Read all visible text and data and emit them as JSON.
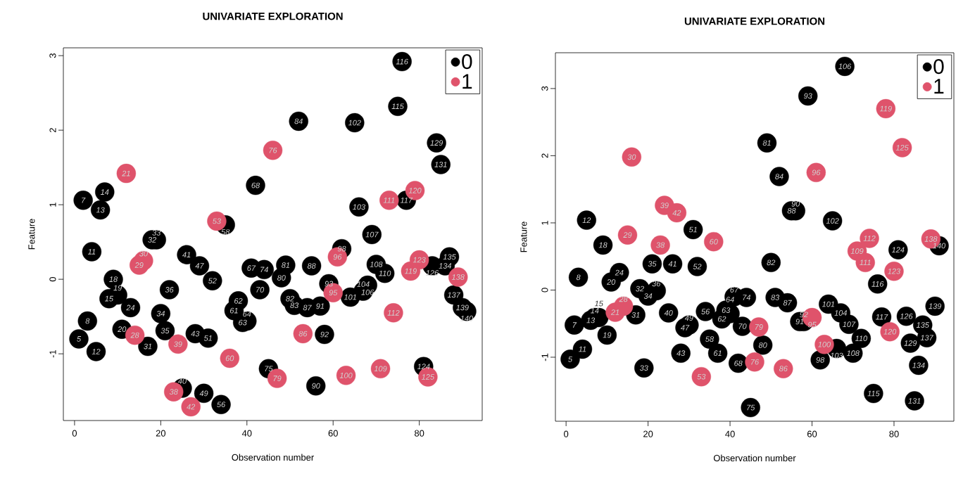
{
  "chart_data": [
    {
      "type": "scatter",
      "title": "UNIVARIATE EXPLORATION",
      "xlabel": "Observation number",
      "ylabel": "Feature",
      "xlim": [
        -2.6,
        94.6
      ],
      "ylim": [
        -1.895,
        3.105
      ],
      "xticks": [
        0,
        20,
        40,
        60,
        80
      ],
      "yticks": [
        -1,
        0,
        1,
        2,
        3
      ],
      "marker": "circle",
      "legend": "top right",
      "data_labels": false,
      "series": [
        {
          "name": "0",
          "color": "#000000",
          "x": [
            1,
            2,
            3,
            4,
            5,
            6,
            7,
            8,
            9,
            10,
            11,
            13,
            17,
            18,
            19,
            20,
            21,
            22,
            25,
            26,
            28,
            29,
            30,
            31,
            32,
            34,
            35,
            37,
            38,
            39,
            40,
            41,
            42,
            43,
            44,
            45,
            48,
            49,
            50,
            51,
            52,
            54,
            55,
            56,
            57,
            58,
            59,
            62,
            64,
            65,
            66,
            67,
            68,
            69,
            70,
            72,
            75,
            76,
            77,
            81,
            83,
            84,
            85,
            86,
            87,
            88,
            90,
            91
          ],
          "values": [
            -0.8,
            1.06,
            -0.56,
            0.37,
            -0.97,
            0.93,
            1.17,
            -0.26,
            0.0,
            -0.21,
            -0.67,
            -0.38,
            -0.9,
            0.53,
            0.53,
            -0.46,
            -0.69,
            -0.14,
            -1.46,
            0.33,
            -0.73,
            0.18,
            -1.53,
            -0.79,
            -0.02,
            -1.68,
            0.73,
            -0.42,
            -0.29,
            -0.58,
            -0.56,
            0.15,
            1.26,
            -0.14,
            0.13,
            -1.2,
            0.02,
            0.19,
            -0.26,
            -0.35,
            2.12,
            -0.38,
            0.18,
            -1.43,
            -0.36,
            -0.74,
            -0.06,
            0.41,
            -0.24,
            2.1,
            0.97,
            -0.16,
            -0.08,
            0.6,
            0.2,
            0.08,
            2.32,
            2.92,
            1.06,
            -1.17,
            0.18,
            1.83,
            1.54,
            0.18,
            0.3,
            -0.21,
            -0.38,
            -0.43
          ]
        },
        {
          "name": "1",
          "color": "#df536b",
          "x": [
            12,
            14,
            15,
            16,
            23,
            24,
            27,
            33,
            36,
            46,
            47,
            53,
            60,
            61,
            63,
            71,
            73,
            74,
            78,
            79,
            80,
            82,
            89
          ],
          "values": [
            1.42,
            -0.75,
            0.19,
            0.25,
            -1.51,
            -0.87,
            -1.71,
            0.78,
            -1.06,
            1.73,
            -1.33,
            -0.73,
            -0.18,
            0.3,
            -1.29,
            -1.2,
            1.06,
            -0.45,
            0.11,
            1.19,
            0.26,
            -1.31,
            0.03
          ]
        }
      ],
      "annotations": [
        {
          "text": "5",
          "x": 1,
          "y": -0.8
        },
        {
          "text": "7",
          "x": 2,
          "y": 1.06
        },
        {
          "text": "8",
          "x": 3,
          "y": -0.56
        },
        {
          "text": "11",
          "x": 4,
          "y": 0.37
        },
        {
          "text": "12",
          "x": 5,
          "y": -0.97
        },
        {
          "text": "13",
          "x": 6,
          "y": 0.93
        },
        {
          "text": "14",
          "x": 7,
          "y": 1.17
        },
        {
          "text": "15",
          "x": 8,
          "y": -0.26
        },
        {
          "text": "18",
          "x": 9,
          "y": 0.0
        },
        {
          "text": "19",
          "x": 10,
          "y": -0.21
        },
        {
          "text": "20",
          "x": 11,
          "y": -0.67
        },
        {
          "text": "21",
          "x": 12,
          "y": 1.42
        },
        {
          "text": "24",
          "x": 13,
          "y": -0.38
        },
        {
          "text": "28",
          "x": 14,
          "y": -0.75
        },
        {
          "text": "29",
          "x": 15,
          "y": 0.19
        },
        {
          "text": "30",
          "x": 16,
          "y": 0.25
        },
        {
          "text": "31",
          "x": 17,
          "y": -0.9
        },
        {
          "text": "32",
          "x": 18,
          "y": 0.53
        },
        {
          "text": "33",
          "x": 19,
          "y": 0.53
        },
        {
          "text": "34",
          "x": 20,
          "y": -0.46
        },
        {
          "text": "35",
          "x": 21,
          "y": -0.69
        },
        {
          "text": "36",
          "x": 22,
          "y": -0.14
        },
        {
          "text": "38",
          "x": 23,
          "y": -1.51
        },
        {
          "text": "39",
          "x": 24,
          "y": -0.87
        },
        {
          "text": "40",
          "x": 25,
          "y": -1.46
        },
        {
          "text": "41",
          "x": 26,
          "y": 0.33
        },
        {
          "text": "42",
          "x": 27,
          "y": -1.71
        },
        {
          "text": "43",
          "x": 28,
          "y": -0.73
        },
        {
          "text": "47",
          "x": 29,
          "y": 0.18
        },
        {
          "text": "49",
          "x": 30,
          "y": -1.53
        },
        {
          "text": "51",
          "x": 31,
          "y": -0.79
        },
        {
          "text": "52",
          "x": 32,
          "y": -0.02
        },
        {
          "text": "53",
          "x": 33,
          "y": 0.78
        },
        {
          "text": "56",
          "x": 34,
          "y": -1.68
        },
        {
          "text": "58",
          "x": 35,
          "y": 0.73
        },
        {
          "text": "60",
          "x": 36,
          "y": -1.06
        },
        {
          "text": "61",
          "x": 37,
          "y": -0.42
        },
        {
          "text": "62",
          "x": 38,
          "y": -0.29
        },
        {
          "text": "63",
          "x": 39,
          "y": -0.58
        },
        {
          "text": "64",
          "x": 40,
          "y": -0.56
        },
        {
          "text": "67",
          "x": 41,
          "y": 0.15
        },
        {
          "text": "68",
          "x": 42,
          "y": 1.26
        },
        {
          "text": "70",
          "x": 43,
          "y": -0.14
        },
        {
          "text": "74",
          "x": 44,
          "y": 0.13
        },
        {
          "text": "75",
          "x": 45,
          "y": -1.2
        },
        {
          "text": "76",
          "x": 46,
          "y": 1.73
        },
        {
          "text": "79",
          "x": 47,
          "y": -1.33
        },
        {
          "text": "80",
          "x": 48,
          "y": 0.02
        },
        {
          "text": "81",
          "x": 49,
          "y": 0.19
        },
        {
          "text": "82",
          "x": 50,
          "y": -0.26
        },
        {
          "text": "83",
          "x": 51,
          "y": -0.35
        },
        {
          "text": "84",
          "x": 52,
          "y": 2.12
        },
        {
          "text": "86",
          "x": 53,
          "y": -0.73
        },
        {
          "text": "87",
          "x": 54,
          "y": -0.38
        },
        {
          "text": "88",
          "x": 55,
          "y": 0.18
        },
        {
          "text": "90",
          "x": 56,
          "y": -1.43
        },
        {
          "text": "91",
          "x": 57,
          "y": -0.36
        },
        {
          "text": "92",
          "x": 58,
          "y": -0.74
        },
        {
          "text": "93",
          "x": 59,
          "y": -0.06
        },
        {
          "text": "95",
          "x": 60,
          "y": -0.18
        },
        {
          "text": "96",
          "x": 61,
          "y": 0.3
        },
        {
          "text": "98",
          "x": 62,
          "y": 0.41
        },
        {
          "text": "100",
          "x": 63,
          "y": -1.29
        },
        {
          "text": "101",
          "x": 64,
          "y": -0.24
        },
        {
          "text": "102",
          "x": 65,
          "y": 2.1
        },
        {
          "text": "103",
          "x": 66,
          "y": 0.97
        },
        {
          "text": "104",
          "x": 67,
          "y": -0.16
        },
        {
          "text": "106",
          "x": 68,
          "y": -0.08
        },
        {
          "text": "107",
          "x": 69,
          "y": 0.6
        },
        {
          "text": "108",
          "x": 70,
          "y": 0.2
        },
        {
          "text": "109",
          "x": 71,
          "y": -1.2
        },
        {
          "text": "110",
          "x": 72,
          "y": 0.08
        },
        {
          "text": "111",
          "x": 73,
          "y": 1.06
        },
        {
          "text": "112",
          "x": 74,
          "y": -0.45
        },
        {
          "text": "115",
          "x": 75,
          "y": 2.32
        },
        {
          "text": "116",
          "x": 76,
          "y": 2.92
        },
        {
          "text": "117",
          "x": 77,
          "y": 1.06
        },
        {
          "text": "119",
          "x": 78,
          "y": 0.11
        },
        {
          "text": "120",
          "x": 79,
          "y": 1.19
        },
        {
          "text": "123",
          "x": 80,
          "y": 0.26
        },
        {
          "text": "124",
          "x": 81,
          "y": -1.17
        },
        {
          "text": "125",
          "x": 82,
          "y": -1.31
        },
        {
          "text": "126",
          "x": 83,
          "y": 0.18
        },
        {
          "text": "129",
          "x": 84,
          "y": 1.83
        },
        {
          "text": "131",
          "x": 85,
          "y": 1.54
        },
        {
          "text": "134",
          "x": 86,
          "y": 0.18
        },
        {
          "text": "135",
          "x": 87,
          "y": 0.3
        },
        {
          "text": "137",
          "x": 88,
          "y": -0.21
        },
        {
          "text": "138",
          "x": 89,
          "y": 0.03
        },
        {
          "text": "139",
          "x": 90,
          "y": -0.38
        },
        {
          "text": "140",
          "x": 91,
          "y": -0.43
        }
      ]
    },
    {
      "type": "scatter",
      "title": "UNIVARIATE EXPLORATION",
      "xlabel": "Observation number",
      "ylabel": "Feature",
      "xlim": [
        -2.6,
        94.6
      ],
      "ylim": [
        -1.953,
        3.533
      ],
      "xticks": [
        0,
        20,
        40,
        60,
        80
      ],
      "yticks": [
        -1,
        0,
        1,
        2,
        3
      ],
      "marker": "circle",
      "legend": "top right",
      "data_labels": false,
      "series": [
        {
          "name": "0",
          "color": "#000000",
          "x": [
            1,
            2,
            3,
            4,
            5,
            6,
            7,
            8,
            9,
            10,
            11,
            13,
            17,
            18,
            19,
            20,
            21,
            22,
            25,
            26,
            28,
            29,
            30,
            31,
            32,
            34,
            35,
            37,
            38,
            39,
            40,
            41,
            42,
            43,
            44,
            45,
            48,
            49,
            50,
            51,
            52,
            54,
            55,
            56,
            57,
            58,
            59,
            62,
            64,
            65,
            66,
            67,
            68,
            69,
            70,
            72,
            75,
            76,
            77,
            81,
            83,
            84,
            85,
            86,
            87,
            88,
            90,
            91
          ],
          "values": [
            -1.03,
            -0.52,
            0.19,
            -0.88,
            1.04,
            -0.45,
            -0.41,
            -0.41,
            0.67,
            -0.67,
            0.12,
            0.26,
            -0.37,
            0.02,
            -1.16,
            -0.09,
            0.39,
            -0.01,
            -0.34,
            0.39,
            -0.94,
            -0.56,
            -0.52,
            0.9,
            0.35,
            -0.32,
            -0.73,
            -0.94,
            -0.43,
            -0.3,
            -0.35,
            -0.1,
            -1.09,
            -0.54,
            -0.11,
            -1.75,
            -0.82,
            2.19,
            0.41,
            -0.11,
            1.69,
            -0.19,
            1.18,
            1.18,
            -0.47,
            -0.47,
            2.89,
            -1.04,
            -0.21,
            1.03,
            -0.87,
            -0.34,
            3.33,
            -0.51,
            -0.94,
            -0.72,
            -1.54,
            0.09,
            -0.4,
            0.6,
            -0.39,
            -0.79,
            -1.65,
            -1.12,
            -0.52,
            -0.71,
            -0.24,
            0.66
          ]
        },
        {
          "name": "1",
          "color": "#df536b",
          "x": [
            12,
            14,
            15,
            16,
            23,
            24,
            27,
            33,
            36,
            46,
            47,
            53,
            60,
            61,
            63,
            71,
            73,
            74,
            78,
            79,
            80,
            82,
            89
          ],
          "values": [
            -0.33,
            -0.24,
            0.82,
            1.98,
            0.67,
            1.26,
            1.15,
            -1.29,
            0.72,
            -1.07,
            -0.55,
            -1.17,
            -0.41,
            1.75,
            -0.81,
            0.58,
            0.41,
            0.77,
            2.7,
            -0.62,
            0.28,
            2.12,
            0.76
          ]
        }
      ],
      "annotations": [
        {
          "text": "5",
          "x": 1,
          "y": -1.03
        },
        {
          "text": "7",
          "x": 2,
          "y": -0.52
        },
        {
          "text": "8",
          "x": 3,
          "y": 0.19
        },
        {
          "text": "11",
          "x": 4,
          "y": -0.88
        },
        {
          "text": "12",
          "x": 5,
          "y": 1.04
        },
        {
          "text": "13",
          "x": 6,
          "y": -0.45
        },
        {
          "text": "14",
          "x": 7,
          "y": -0.41
        },
        {
          "text": "15",
          "x": 8,
          "y": -0.41
        },
        {
          "text": "18",
          "x": 9,
          "y": 0.67
        },
        {
          "text": "19",
          "x": 10,
          "y": -0.67
        },
        {
          "text": "20",
          "x": 11,
          "y": 0.12
        },
        {
          "text": "21",
          "x": 12,
          "y": -0.33
        },
        {
          "text": "24",
          "x": 13,
          "y": 0.26
        },
        {
          "text": "28",
          "x": 14,
          "y": -0.24
        },
        {
          "text": "29",
          "x": 15,
          "y": 0.82
        },
        {
          "text": "30",
          "x": 16,
          "y": 1.98
        },
        {
          "text": "31",
          "x": 17,
          "y": -0.37
        },
        {
          "text": "32",
          "x": 18,
          "y": 0.02
        },
        {
          "text": "33",
          "x": 19,
          "y": -1.16
        },
        {
          "text": "34",
          "x": 20,
          "y": -0.09
        },
        {
          "text": "35",
          "x": 21,
          "y": 0.39
        },
        {
          "text": "36",
          "x": 22,
          "y": -0.01
        },
        {
          "text": "38",
          "x": 23,
          "y": 0.67
        },
        {
          "text": "39",
          "x": 24,
          "y": 1.26
        },
        {
          "text": "40",
          "x": 25,
          "y": -0.34
        },
        {
          "text": "41",
          "x": 26,
          "y": 0.39
        },
        {
          "text": "42",
          "x": 27,
          "y": 1.15
        },
        {
          "text": "43",
          "x": 28,
          "y": -0.94
        },
        {
          "text": "47",
          "x": 29,
          "y": -0.56
        },
        {
          "text": "49",
          "x": 30,
          "y": -0.52
        },
        {
          "text": "51",
          "x": 31,
          "y": 0.9
        },
        {
          "text": "52",
          "x": 32,
          "y": 0.35
        },
        {
          "text": "53",
          "x": 33,
          "y": -1.29
        },
        {
          "text": "56",
          "x": 34,
          "y": -0.32
        },
        {
          "text": "58",
          "x": 35,
          "y": -0.73
        },
        {
          "text": "60",
          "x": 36,
          "y": 0.72
        },
        {
          "text": "61",
          "x": 37,
          "y": -0.94
        },
        {
          "text": "62",
          "x": 38,
          "y": -0.43
        },
        {
          "text": "63",
          "x": 39,
          "y": -0.3
        },
        {
          "text": "64",
          "x": 40,
          "y": -0.35
        },
        {
          "text": "67",
          "x": 41,
          "y": -0.1
        },
        {
          "text": "68",
          "x": 42,
          "y": -1.09
        },
        {
          "text": "70",
          "x": 43,
          "y": -0.54
        },
        {
          "text": "74",
          "x": 44,
          "y": -0.11
        },
        {
          "text": "75",
          "x": 45,
          "y": -1.75
        },
        {
          "text": "76",
          "x": 46,
          "y": -1.07
        },
        {
          "text": "79",
          "x": 47,
          "y": -0.55
        },
        {
          "text": "80",
          "x": 48,
          "y": -0.82
        },
        {
          "text": "81",
          "x": 49,
          "y": 2.19
        },
        {
          "text": "82",
          "x": 50,
          "y": 0.41
        },
        {
          "text": "83",
          "x": 51,
          "y": -0.11
        },
        {
          "text": "84",
          "x": 52,
          "y": 1.69
        },
        {
          "text": "86",
          "x": 53,
          "y": -1.17
        },
        {
          "text": "87",
          "x": 54,
          "y": -0.19
        },
        {
          "text": "88",
          "x": 55,
          "y": 1.18
        },
        {
          "text": "90",
          "x": 56,
          "y": 1.18
        },
        {
          "text": "91",
          "x": 57,
          "y": -0.47
        },
        {
          "text": "92",
          "x": 58,
          "y": -0.47
        },
        {
          "text": "93",
          "x": 59,
          "y": 2.89
        },
        {
          "text": "95",
          "x": 60,
          "y": -0.41
        },
        {
          "text": "96",
          "x": 61,
          "y": 1.75
        },
        {
          "text": "98",
          "x": 62,
          "y": -1.04
        },
        {
          "text": "100",
          "x": 63,
          "y": -0.81
        },
        {
          "text": "101",
          "x": 64,
          "y": -0.21
        },
        {
          "text": "102",
          "x": 65,
          "y": 1.03
        },
        {
          "text": "103",
          "x": 66,
          "y": -0.87
        },
        {
          "text": "104",
          "x": 67,
          "y": -0.34
        },
        {
          "text": "106",
          "x": 68,
          "y": 3.33
        },
        {
          "text": "107",
          "x": 69,
          "y": -0.51
        },
        {
          "text": "108",
          "x": 70,
          "y": -0.94
        },
        {
          "text": "109",
          "x": 71,
          "y": 0.58
        },
        {
          "text": "110",
          "x": 72,
          "y": -0.72
        },
        {
          "text": "111",
          "x": 73,
          "y": 0.41
        },
        {
          "text": "112",
          "x": 74,
          "y": 0.77
        },
        {
          "text": "115",
          "x": 75,
          "y": -1.54
        },
        {
          "text": "116",
          "x": 76,
          "y": 0.09
        },
        {
          "text": "117",
          "x": 77,
          "y": -0.4
        },
        {
          "text": "119",
          "x": 78,
          "y": 2.7
        },
        {
          "text": "120",
          "x": 79,
          "y": -0.62
        },
        {
          "text": "123",
          "x": 80,
          "y": 0.28
        },
        {
          "text": "124",
          "x": 81,
          "y": 0.6
        },
        {
          "text": "125",
          "x": 82,
          "y": 2.12
        },
        {
          "text": "126",
          "x": 83,
          "y": -0.39
        },
        {
          "text": "129",
          "x": 84,
          "y": -0.79
        },
        {
          "text": "131",
          "x": 85,
          "y": -1.65
        },
        {
          "text": "134",
          "x": 86,
          "y": -1.12
        },
        {
          "text": "135",
          "x": 87,
          "y": -0.52
        },
        {
          "text": "137",
          "x": 88,
          "y": -0.71
        },
        {
          "text": "138",
          "x": 89,
          "y": 0.76
        },
        {
          "text": "139",
          "x": 90,
          "y": -0.24
        },
        {
          "text": "140",
          "x": 91,
          "y": 0.66
        }
      ]
    }
  ]
}
